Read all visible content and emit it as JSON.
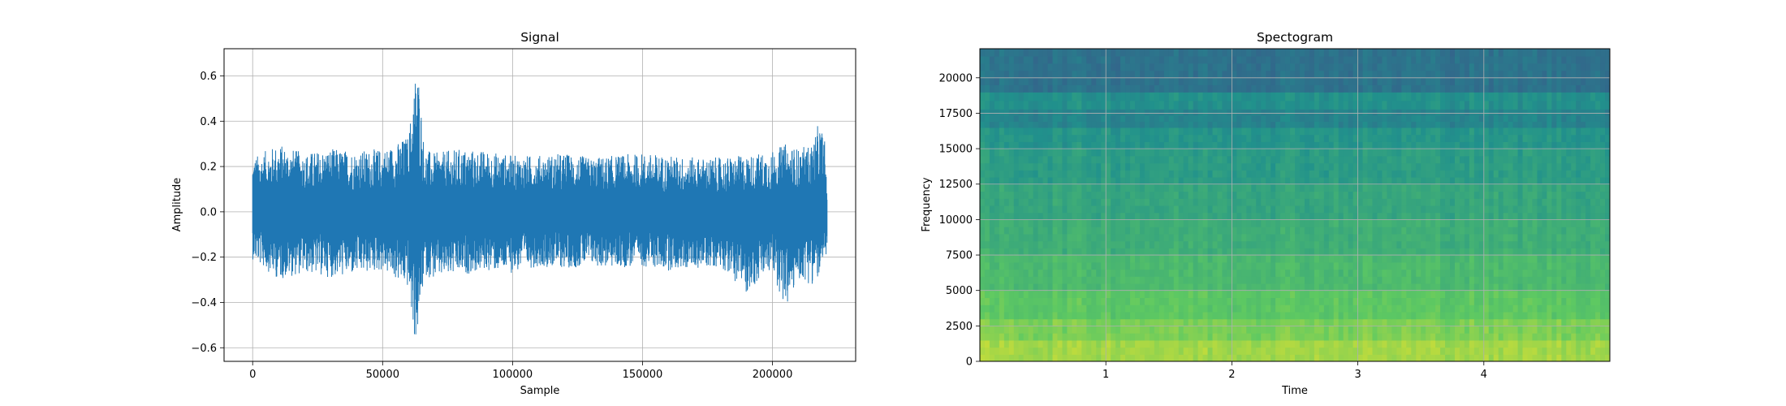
{
  "chart_data": [
    {
      "type": "line",
      "title": "Signal",
      "xlabel": "Sample",
      "ylabel": "Amplitude",
      "xlim": [
        -11000,
        232000
      ],
      "ylim": [
        -0.66,
        0.72
      ],
      "xticks": [
        0,
        50000,
        100000,
        150000,
        200000
      ],
      "xtick_labels": [
        "0",
        "50000",
        "100000",
        "150000",
        "200000"
      ],
      "yticks": [
        -0.6,
        -0.4,
        -0.2,
        0.0,
        0.2,
        0.4,
        0.6
      ],
      "ytick_labels": [
        "−0.6",
        "−0.4",
        "−0.2",
        "0.0",
        "0.2",
        "0.4",
        "0.6"
      ],
      "grid": true,
      "color": "#1f77b4",
      "series": [
        {
          "x": [
            0,
            10000,
            20000,
            30000,
            40000,
            50000,
            55000,
            60000,
            62000,
            63000,
            64000,
            66000,
            70000,
            80000,
            90000,
            100000,
            110000,
            120000,
            130000,
            140000,
            150000,
            160000,
            170000,
            180000,
            190000,
            200000,
            205000,
            210000,
            215000,
            218000,
            220000,
            221000
          ],
          "upper": [
            0.24,
            0.3,
            0.26,
            0.28,
            0.27,
            0.28,
            0.3,
            0.34,
            0.55,
            0.66,
            0.6,
            0.28,
            0.26,
            0.28,
            0.27,
            0.25,
            0.25,
            0.26,
            0.24,
            0.25,
            0.26,
            0.25,
            0.24,
            0.24,
            0.25,
            0.27,
            0.3,
            0.28,
            0.3,
            0.4,
            0.33,
            0.15
          ],
          "lower": [
            -0.21,
            -0.3,
            -0.27,
            -0.29,
            -0.28,
            -0.26,
            -0.3,
            -0.34,
            -0.55,
            -0.58,
            -0.5,
            -0.28,
            -0.3,
            -0.28,
            -0.26,
            -0.27,
            -0.24,
            -0.25,
            -0.24,
            -0.25,
            -0.24,
            -0.26,
            -0.25,
            -0.24,
            -0.36,
            -0.26,
            -0.44,
            -0.3,
            -0.32,
            -0.3,
            -0.25,
            -0.15
          ]
        }
      ]
    },
    {
      "type": "heatmap",
      "title": "Spectogram",
      "xlabel": "Time",
      "ylabel": "Frequency",
      "xlim": [
        0,
        5.0
      ],
      "ylim": [
        0,
        22050
      ],
      "xticks": [
        1,
        2,
        3,
        4
      ],
      "xtick_labels": [
        "1",
        "2",
        "3",
        "4"
      ],
      "yticks": [
        0,
        2500,
        5000,
        7500,
        10000,
        12500,
        15000,
        17500,
        20000
      ],
      "ytick_labels": [
        "0",
        "2500",
        "5000",
        "7500",
        "10000",
        "12500",
        "15000",
        "17500",
        "20000"
      ],
      "grid": true,
      "colormap": "viridis",
      "frequency_bands": [
        {
          "from": 0,
          "to": 1500,
          "level": 0.86
        },
        {
          "from": 1500,
          "to": 3000,
          "level": 0.8
        },
        {
          "from": 3000,
          "to": 5000,
          "level": 0.74
        },
        {
          "from": 5000,
          "to": 7500,
          "level": 0.68
        },
        {
          "from": 7500,
          "to": 10000,
          "level": 0.63
        },
        {
          "from": 10000,
          "to": 12500,
          "level": 0.59
        },
        {
          "from": 12500,
          "to": 15000,
          "level": 0.55
        },
        {
          "from": 15000,
          "to": 16500,
          "level": 0.52
        },
        {
          "from": 16500,
          "to": 17800,
          "level": 0.45
        },
        {
          "from": 17800,
          "to": 19000,
          "level": 0.5
        },
        {
          "from": 19000,
          "to": 22050,
          "level": 0.38
        }
      ]
    }
  ]
}
